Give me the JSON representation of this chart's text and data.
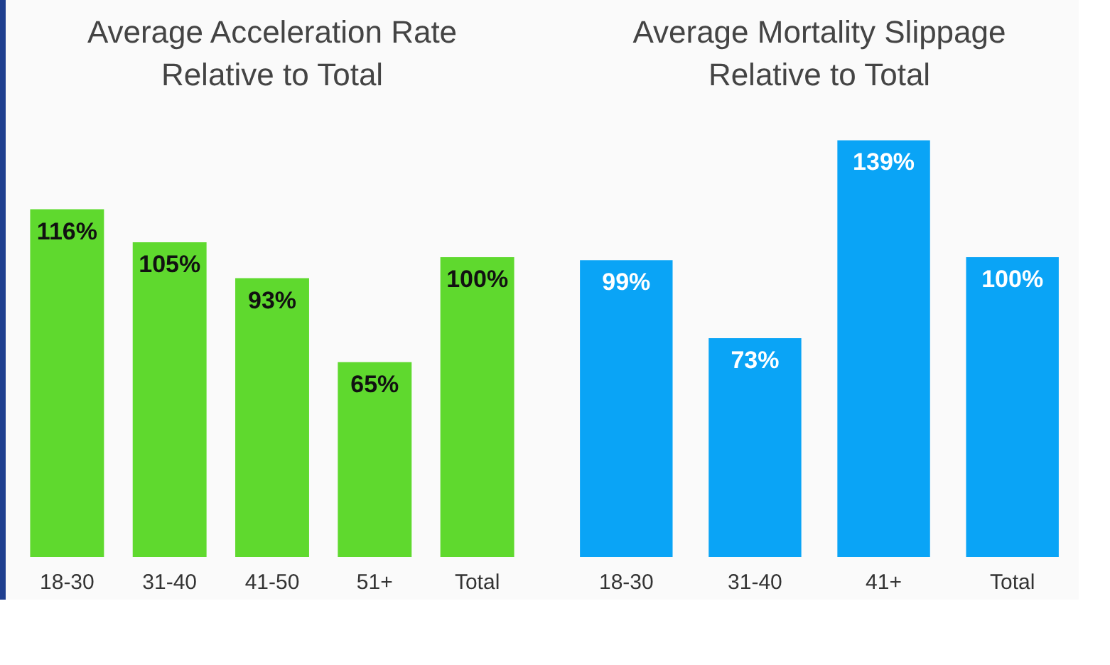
{
  "chart_data": [
    {
      "type": "bar",
      "title": "Average Acceleration Rate\nRelative to Total",
      "categories": [
        "18-30",
        "31-40",
        "41-50",
        "51+",
        "Total"
      ],
      "values": [
        116,
        105,
        93,
        65,
        100
      ],
      "color": "#5fd92e",
      "value_labels": [
        "116%",
        "105%",
        "93%",
        "65%",
        "100%"
      ]
    },
    {
      "type": "bar",
      "title": "Average Mortality Slippage\nRelative to Total",
      "categories": [
        "18-30",
        "31-40",
        "41+",
        "Total"
      ],
      "values": [
        99,
        73,
        139,
        100
      ],
      "color": "#0aa4f6",
      "value_labels": [
        "99%",
        "73%",
        "139%",
        "100%"
      ]
    }
  ]
}
